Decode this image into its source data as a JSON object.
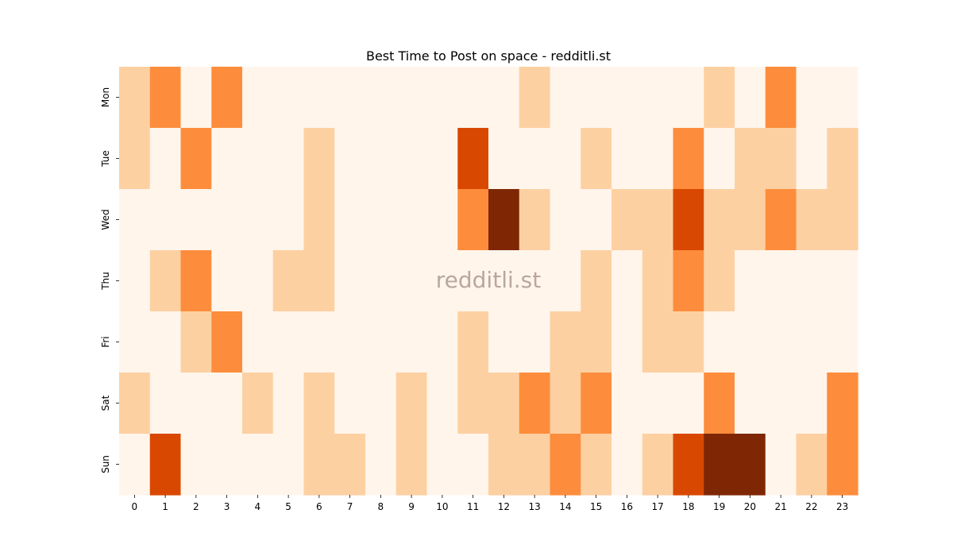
{
  "chart_data": {
    "type": "heatmap",
    "title": "Best Time to Post on space - redditli.st",
    "watermark": "redditli.st",
    "x_categories": [
      "0",
      "1",
      "2",
      "3",
      "4",
      "5",
      "6",
      "7",
      "8",
      "9",
      "10",
      "11",
      "12",
      "13",
      "14",
      "15",
      "16",
      "17",
      "18",
      "19",
      "20",
      "21",
      "22",
      "23"
    ],
    "y_categories": [
      "Mon",
      "Tue",
      "Wed",
      "Thu",
      "Fri",
      "Sat",
      "Sun"
    ],
    "values": [
      [
        1,
        2,
        0,
        2,
        0,
        0,
        0,
        0,
        0,
        0,
        0,
        0,
        0,
        1,
        0,
        0,
        0,
        0,
        0,
        1,
        0,
        2,
        0,
        0
      ],
      [
        1,
        0,
        2,
        0,
        0,
        0,
        1,
        0,
        0,
        0,
        0,
        3,
        0,
        0,
        0,
        1,
        0,
        0,
        2,
        0,
        1,
        1,
        0,
        1
      ],
      [
        0,
        0,
        0,
        0,
        0,
        0,
        1,
        0,
        0,
        0,
        0,
        2,
        4,
        1,
        0,
        0,
        1,
        1,
        3,
        1,
        1,
        2,
        1,
        1
      ],
      [
        0,
        1,
        2,
        0,
        0,
        1,
        1,
        0,
        0,
        0,
        0,
        0,
        0,
        0,
        0,
        1,
        0,
        1,
        2,
        1,
        0,
        0,
        0,
        0
      ],
      [
        0,
        0,
        1,
        2,
        0,
        0,
        0,
        0,
        0,
        0,
        0,
        1,
        0,
        0,
        1,
        1,
        0,
        1,
        1,
        0,
        0,
        0,
        0,
        0
      ],
      [
        1,
        0,
        0,
        0,
        1,
        0,
        1,
        0,
        0,
        1,
        0,
        1,
        1,
        2,
        1,
        2,
        0,
        0,
        0,
        2,
        0,
        0,
        0,
        2
      ],
      [
        0,
        3,
        0,
        0,
        0,
        0,
        1,
        1,
        0,
        1,
        0,
        0,
        1,
        1,
        2,
        1,
        0,
        1,
        3,
        4,
        4,
        0,
        1,
        2
      ]
    ],
    "colormap": [
      "#fff5eb",
      "#fdd0a2",
      "#fd8d3c",
      "#d94801",
      "#7f2704"
    ],
    "colorbar": false,
    "grid": false
  }
}
